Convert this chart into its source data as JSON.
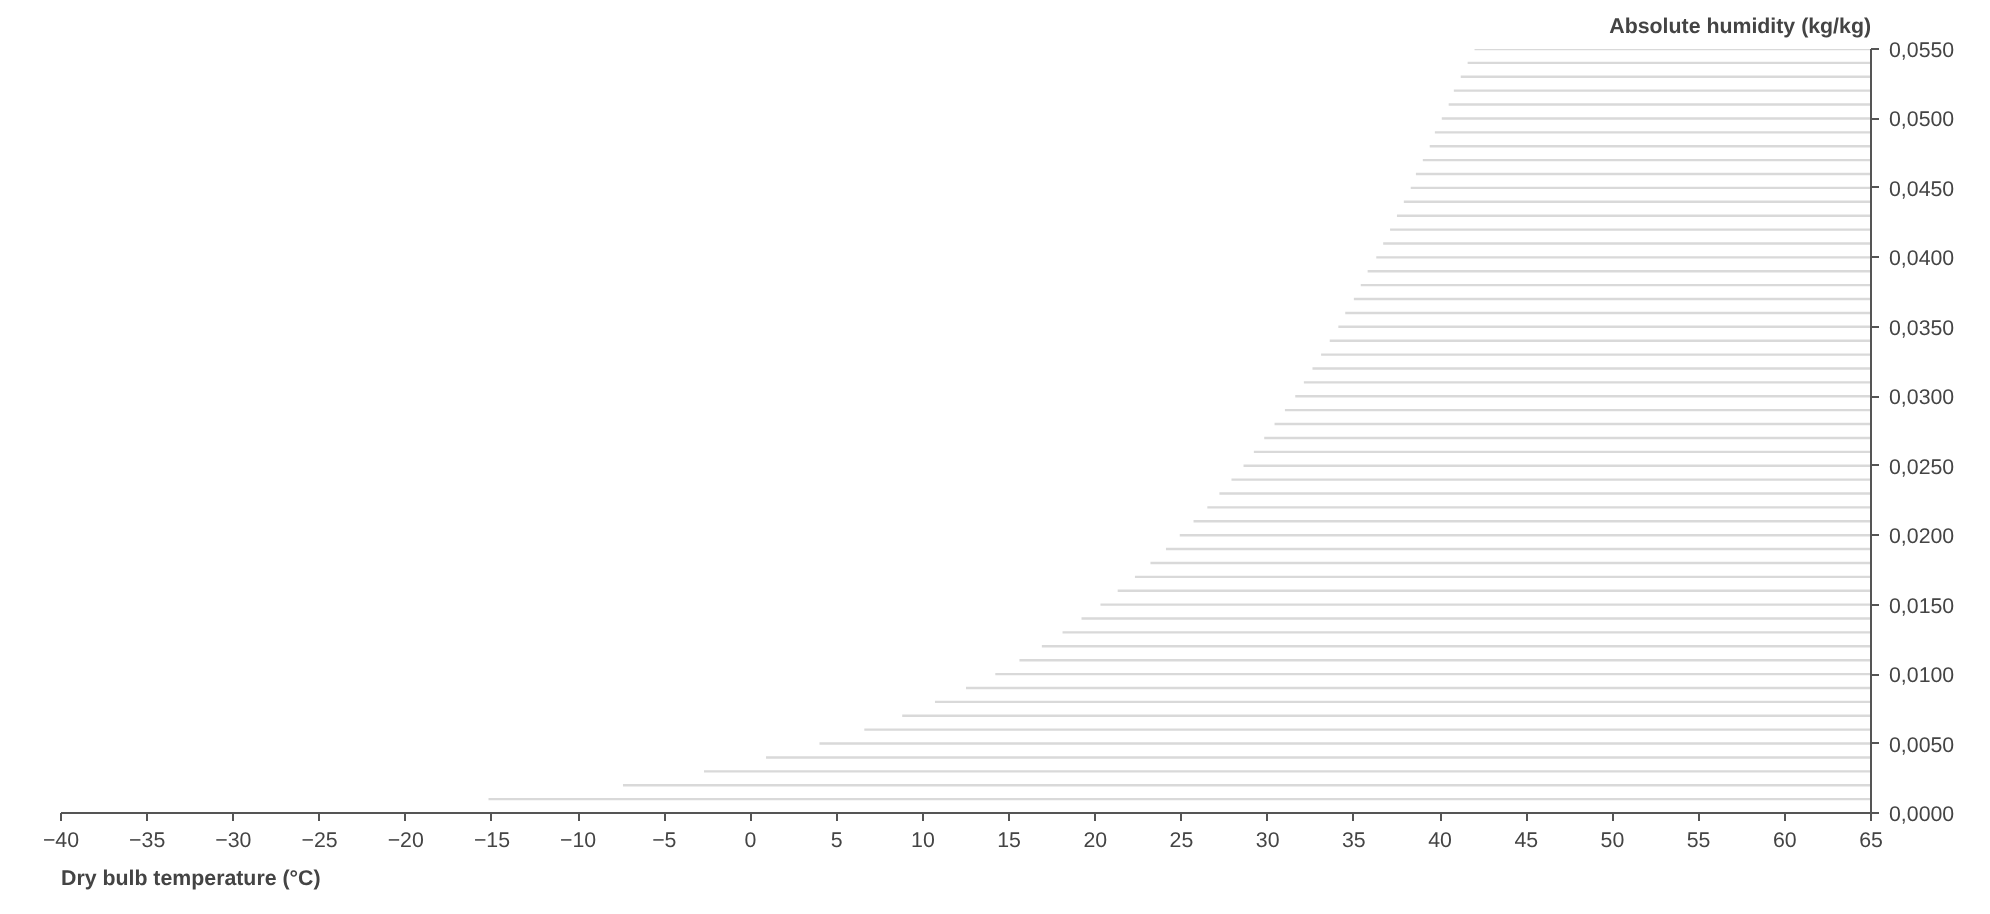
{
  "chart_data": {
    "type": "line",
    "xlabel": "Dry bulb temperature (°C)",
    "ylabel": "Absolute humidity (kg/kg)",
    "xlim": [
      -40,
      65
    ],
    "ylim": [
      0,
      0.055
    ],
    "xticks": [
      -40,
      -35,
      -30,
      -25,
      -20,
      -15,
      -10,
      -5,
      0,
      5,
      10,
      15,
      20,
      25,
      30,
      35,
      40,
      45,
      50,
      55,
      60,
      65
    ],
    "yticks": [
      {
        "value": 0,
        "label": "0,0000"
      },
      {
        "value": 0.005,
        "label": "0,0050"
      },
      {
        "value": 0.01,
        "label": "0,0100"
      },
      {
        "value": 0.015,
        "label": "0,0150"
      },
      {
        "value": 0.02,
        "label": "0,0200"
      },
      {
        "value": 0.025,
        "label": "0,0250"
      },
      {
        "value": 0.03,
        "label": "0,0300"
      },
      {
        "value": 0.035,
        "label": "0,0350"
      },
      {
        "value": 0.04,
        "label": "0,0400"
      },
      {
        "value": 0.045,
        "label": "0,0450"
      },
      {
        "value": 0.05,
        "label": "0,0500"
      },
      {
        "value": 0.055,
        "label": "0,0550"
      }
    ],
    "grid": false,
    "marker": "none",
    "line_style": "solid",
    "series": [
      {
        "color": "#d9d9d9",
        "x": [
          -15.2,
          65
        ],
        "values": [
          0.001,
          0.001
        ]
      },
      {
        "color": "#d9d9d9",
        "x": [
          -7.4,
          65
        ],
        "values": [
          0.002,
          0.002
        ]
      },
      {
        "color": "#d9d9d9",
        "x": [
          -2.7,
          65
        ],
        "values": [
          0.003,
          0.003
        ]
      },
      {
        "color": "#d9d9d9",
        "x": [
          0.9,
          65
        ],
        "values": [
          0.004,
          0.004
        ]
      },
      {
        "color": "#d9d9d9",
        "x": [
          4.0,
          65
        ],
        "values": [
          0.005,
          0.005
        ]
      },
      {
        "color": "#d9d9d9",
        "x": [
          6.6,
          65
        ],
        "values": [
          0.006,
          0.006
        ]
      },
      {
        "color": "#d9d9d9",
        "x": [
          8.8,
          65
        ],
        "values": [
          0.007,
          0.007
        ]
      },
      {
        "color": "#d9d9d9",
        "x": [
          10.7,
          65
        ],
        "values": [
          0.008,
          0.008
        ]
      },
      {
        "color": "#d9d9d9",
        "x": [
          12.5,
          65
        ],
        "values": [
          0.009,
          0.009
        ]
      },
      {
        "color": "#d9d9d9",
        "x": [
          14.2,
          65
        ],
        "values": [
          0.01,
          0.01
        ]
      },
      {
        "color": "#d9d9d9",
        "x": [
          15.6,
          65
        ],
        "values": [
          0.011,
          0.011
        ]
      },
      {
        "color": "#d9d9d9",
        "x": [
          16.9,
          65
        ],
        "values": [
          0.012,
          0.012
        ]
      },
      {
        "color": "#d9d9d9",
        "x": [
          18.1,
          65
        ],
        "values": [
          0.013,
          0.013
        ]
      },
      {
        "color": "#d9d9d9",
        "x": [
          19.2,
          65
        ],
        "values": [
          0.014,
          0.014
        ]
      },
      {
        "color": "#d9d9d9",
        "x": [
          20.3,
          65
        ],
        "values": [
          0.015,
          0.015
        ]
      },
      {
        "color": "#d9d9d9",
        "x": [
          21.3,
          65
        ],
        "values": [
          0.016,
          0.016
        ]
      },
      {
        "color": "#d9d9d9",
        "x": [
          22.3,
          65
        ],
        "values": [
          0.017,
          0.017
        ]
      },
      {
        "color": "#d9d9d9",
        "x": [
          23.2,
          65
        ],
        "values": [
          0.018,
          0.018
        ]
      },
      {
        "color": "#d9d9d9",
        "x": [
          24.1,
          65
        ],
        "values": [
          0.019,
          0.019
        ]
      },
      {
        "color": "#d9d9d9",
        "x": [
          24.9,
          65
        ],
        "values": [
          0.02,
          0.02
        ]
      },
      {
        "color": "#d9d9d9",
        "x": [
          25.7,
          65
        ],
        "values": [
          0.021,
          0.021
        ]
      },
      {
        "color": "#d9d9d9",
        "x": [
          26.5,
          65
        ],
        "values": [
          0.022,
          0.022
        ]
      },
      {
        "color": "#d9d9d9",
        "x": [
          27.2,
          65
        ],
        "values": [
          0.023,
          0.023
        ]
      },
      {
        "color": "#d9d9d9",
        "x": [
          27.9,
          65
        ],
        "values": [
          0.024,
          0.024
        ]
      },
      {
        "color": "#d9d9d9",
        "x": [
          28.6,
          65
        ],
        "values": [
          0.025,
          0.025
        ]
      },
      {
        "color": "#d9d9d9",
        "x": [
          29.2,
          65
        ],
        "values": [
          0.026,
          0.026
        ]
      },
      {
        "color": "#d9d9d9",
        "x": [
          29.8,
          65
        ],
        "values": [
          0.027,
          0.027
        ]
      },
      {
        "color": "#d9d9d9",
        "x": [
          30.4,
          65
        ],
        "values": [
          0.028,
          0.028
        ]
      },
      {
        "color": "#d9d9d9",
        "x": [
          31.0,
          65
        ],
        "values": [
          0.029,
          0.029
        ]
      },
      {
        "color": "#d9d9d9",
        "x": [
          31.6,
          65
        ],
        "values": [
          0.03,
          0.03
        ]
      },
      {
        "color": "#d9d9d9",
        "x": [
          32.1,
          65
        ],
        "values": [
          0.031,
          0.031
        ]
      },
      {
        "color": "#d9d9d9",
        "x": [
          32.6,
          65
        ],
        "values": [
          0.032,
          0.032
        ]
      },
      {
        "color": "#d9d9d9",
        "x": [
          33.1,
          65
        ],
        "values": [
          0.033,
          0.033
        ]
      },
      {
        "color": "#d9d9d9",
        "x": [
          33.6,
          65
        ],
        "values": [
          0.034,
          0.034
        ]
      },
      {
        "color": "#d9d9d9",
        "x": [
          34.1,
          65
        ],
        "values": [
          0.035,
          0.035
        ]
      },
      {
        "color": "#d9d9d9",
        "x": [
          34.5,
          65
        ],
        "values": [
          0.036,
          0.036
        ]
      },
      {
        "color": "#d9d9d9",
        "x": [
          35.0,
          65
        ],
        "values": [
          0.037,
          0.037
        ]
      },
      {
        "color": "#d9d9d9",
        "x": [
          35.4,
          65
        ],
        "values": [
          0.038,
          0.038
        ]
      },
      {
        "color": "#d9d9d9",
        "x": [
          35.8,
          65
        ],
        "values": [
          0.039,
          0.039
        ]
      },
      {
        "color": "#d9d9d9",
        "x": [
          36.3,
          65
        ],
        "values": [
          0.04,
          0.04
        ]
      },
      {
        "color": "#d9d9d9",
        "x": [
          36.7,
          65
        ],
        "values": [
          0.041,
          0.041
        ]
      },
      {
        "color": "#d9d9d9",
        "x": [
          37.1,
          65
        ],
        "values": [
          0.042,
          0.042
        ]
      },
      {
        "color": "#d9d9d9",
        "x": [
          37.5,
          65
        ],
        "values": [
          0.043,
          0.043
        ]
      },
      {
        "color": "#d9d9d9",
        "x": [
          37.9,
          65
        ],
        "values": [
          0.044,
          0.044
        ]
      },
      {
        "color": "#d9d9d9",
        "x": [
          38.3,
          65
        ],
        "values": [
          0.045,
          0.045
        ]
      },
      {
        "color": "#d9d9d9",
        "x": [
          38.6,
          65
        ],
        "values": [
          0.046,
          0.046
        ]
      },
      {
        "color": "#d9d9d9",
        "x": [
          39.0,
          65
        ],
        "values": [
          0.047,
          0.047
        ]
      },
      {
        "color": "#d9d9d9",
        "x": [
          39.4,
          65
        ],
        "values": [
          0.048,
          0.048
        ]
      },
      {
        "color": "#d9d9d9",
        "x": [
          39.7,
          65
        ],
        "values": [
          0.049,
          0.049
        ]
      },
      {
        "color": "#d9d9d9",
        "x": [
          40.1,
          65
        ],
        "values": [
          0.05,
          0.05
        ]
      },
      {
        "color": "#d9d9d9",
        "x": [
          40.5,
          65
        ],
        "values": [
          0.051,
          0.051
        ]
      },
      {
        "color": "#d9d9d9",
        "x": [
          40.8,
          65
        ],
        "values": [
          0.052,
          0.052
        ]
      },
      {
        "color": "#d9d9d9",
        "x": [
          41.2,
          65
        ],
        "values": [
          0.053,
          0.053
        ]
      },
      {
        "color": "#d9d9d9",
        "x": [
          41.6,
          65
        ],
        "values": [
          0.054,
          0.054
        ]
      },
      {
        "color": "#d9d9d9",
        "x": [
          42.0,
          65
        ],
        "values": [
          0.055,
          0.055
        ]
      }
    ]
  }
}
